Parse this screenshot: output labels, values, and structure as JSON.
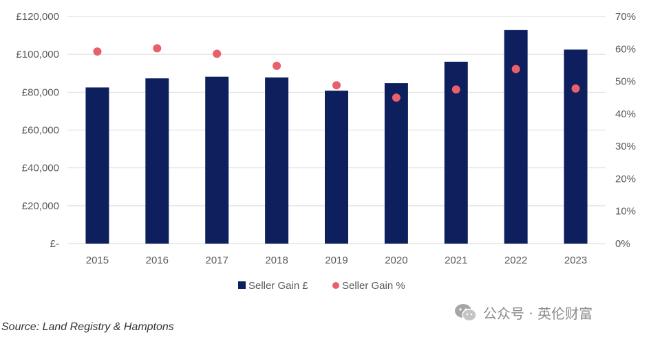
{
  "chart_data": {
    "type": "bar",
    "categories": [
      "2015",
      "2016",
      "2017",
      "2018",
      "2019",
      "2020",
      "2021",
      "2022",
      "2023"
    ],
    "series": [
      {
        "name": "Seller Gain £",
        "type": "bar",
        "axis": "left",
        "values": [
          82500,
          87300,
          88200,
          87800,
          80800,
          84800,
          96100,
          112800,
          102500
        ]
      },
      {
        "name": "Seller Gain %",
        "type": "scatter",
        "axis": "right",
        "values": [
          59.2,
          60.2,
          58.5,
          54.8,
          48.8,
          45.0,
          47.5,
          53.8,
          47.8
        ]
      }
    ],
    "y_left": {
      "ylim": [
        0,
        120000
      ],
      "ticks": [
        "£-",
        "£20,000",
        "£40,000",
        "£60,000",
        "£80,000",
        "£100,000",
        "£120,000"
      ]
    },
    "y_right": {
      "ylim": [
        0,
        70
      ],
      "ticks": [
        "0%",
        "10%",
        "20%",
        "30%",
        "40%",
        "50%",
        "60%",
        "70%"
      ]
    },
    "grid": true,
    "legend": "bottom",
    "colors": {
      "bar": "#0d1f5c",
      "dot": "#e8606a",
      "grid": "#d9d9d9"
    }
  },
  "source": "Source: Land Registry & Hamptons",
  "watermark": {
    "icon": "wechat-icon",
    "text": "公众号 · 英伦财富"
  }
}
